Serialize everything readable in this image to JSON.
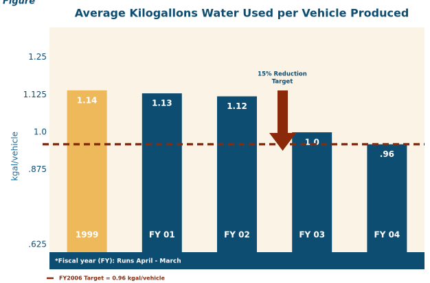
{
  "chart_data": {
    "type": "bar",
    "figure_label": "Figure",
    "title": "Average Kilogallons Water Used per Vehicle Produced",
    "y_label": "kgal/vehicle",
    "categories": [
      "1999",
      "FY 01",
      "FY 02",
      "FY 03",
      "FY 04"
    ],
    "values": [
      1.14,
      1.13,
      1.12,
      1.0,
      0.96
    ],
    "value_labels": [
      "1.14",
      "1.13",
      "1.12",
      "1.0",
      ".96"
    ],
    "colors": [
      "#edb95a",
      "#0e4d72",
      "#0e4d72",
      "#0e4d72",
      "#0e4d72"
    ],
    "ylim": [
      0.6,
      1.35
    ],
    "yticks": [
      {
        "value": 1.25,
        "label": "1.25"
      },
      {
        "value": 1.125,
        "label": "1.125"
      },
      {
        "value": 1.0,
        "label": "1.0"
      },
      {
        "value": 0.875,
        "label": ".875"
      },
      {
        "value": 0.625,
        "label": ".625"
      }
    ],
    "target_value": 0.96,
    "target_color": "#8b2a0a",
    "annotation": [
      "15% Reduction",
      "Target"
    ],
    "footnote": "*Fiscal year (FY): Runs  April - March",
    "legend": "FY2006 Target = 0.96 kgal/vehicle"
  }
}
